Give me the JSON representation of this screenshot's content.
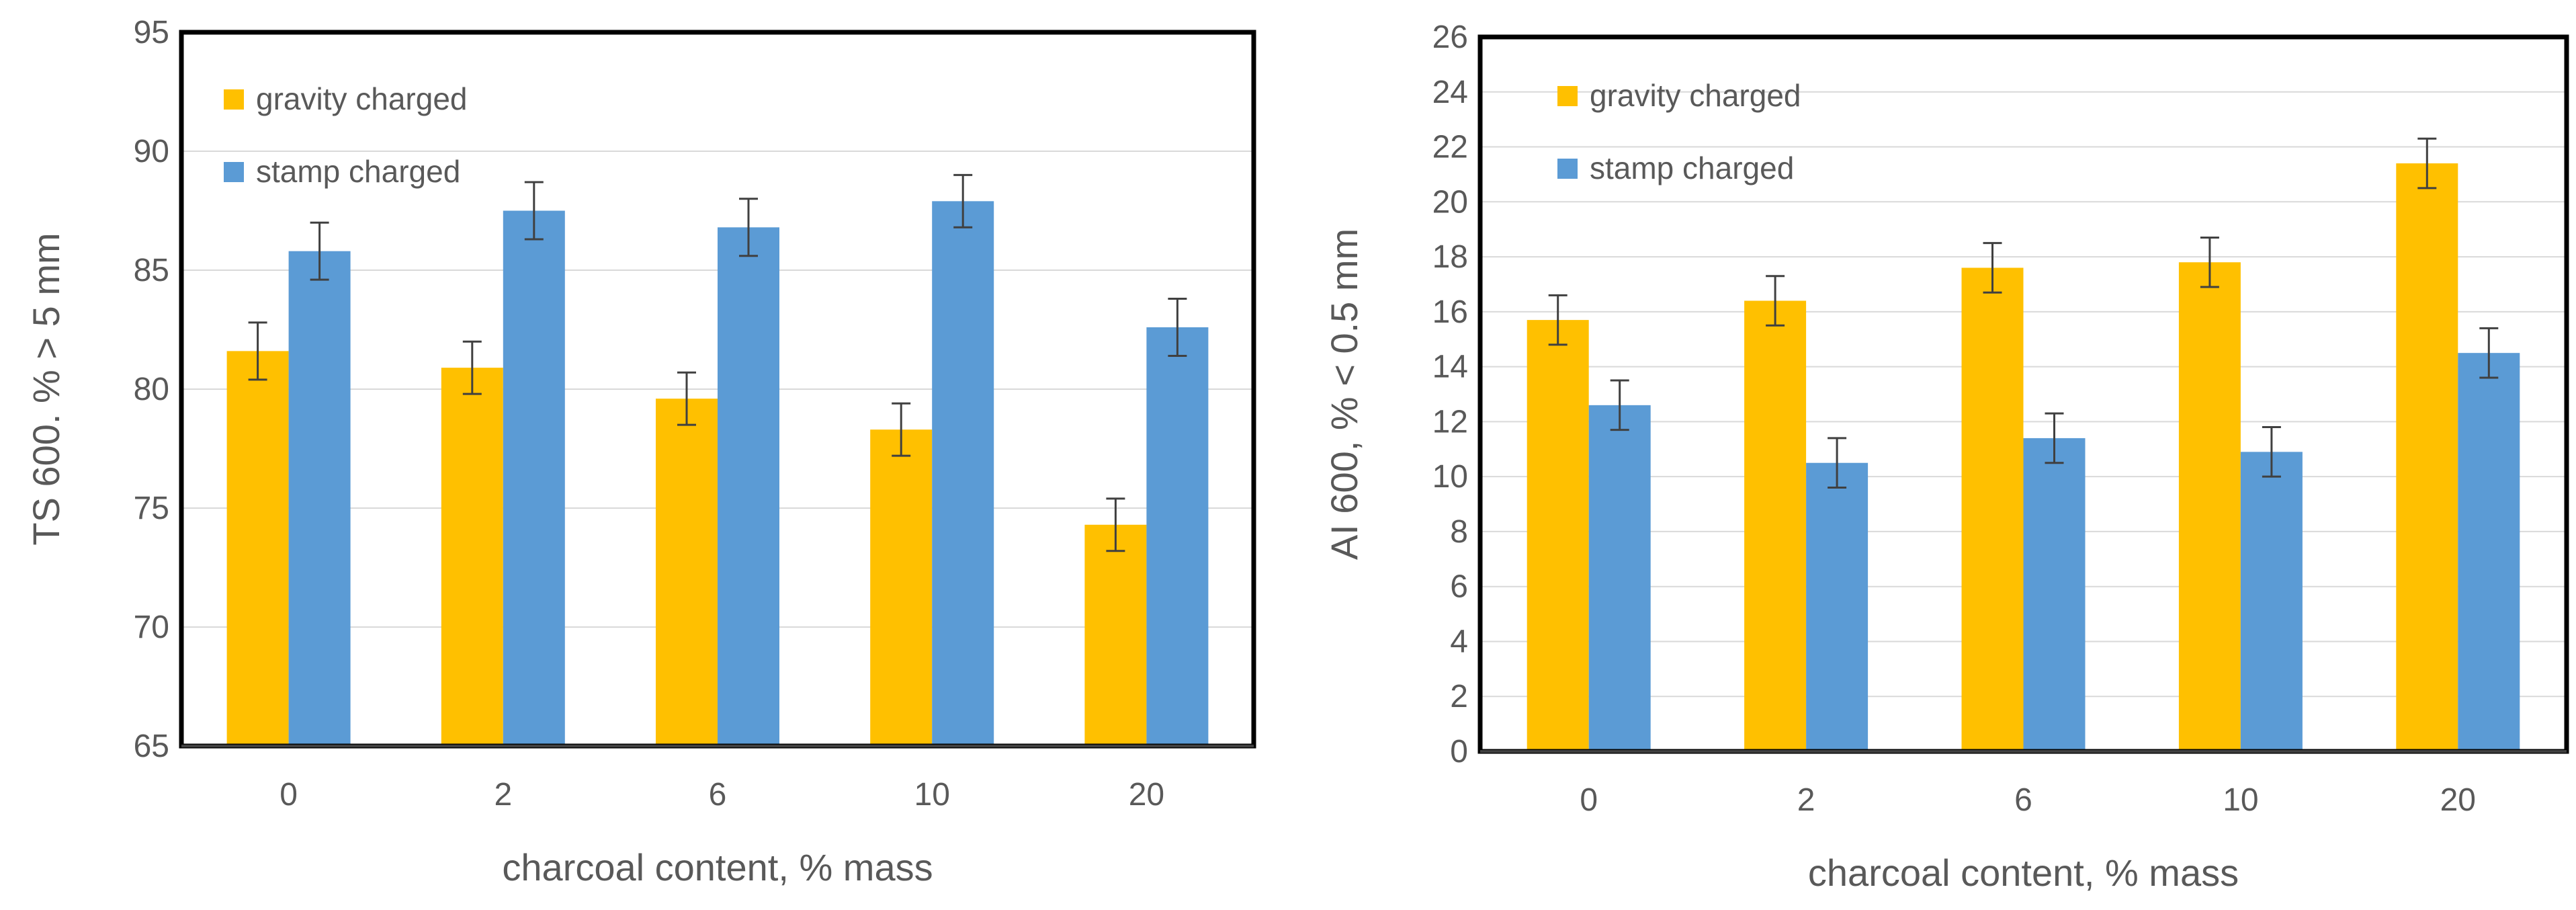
{
  "chart_data": [
    {
      "type": "bar",
      "title": "",
      "xlabel": "charcoal content, % mass",
      "ylabel": "TS 600. % > 5 mm",
      "categories": [
        "0",
        "2",
        "6",
        "10",
        "20"
      ],
      "ylim": [
        65,
        95
      ],
      "yticks": [
        65,
        70,
        75,
        80,
        85,
        90,
        95
      ],
      "grid": true,
      "legend_position": "top-left",
      "series": [
        {
          "name": "gravity charged",
          "color": "#FFC000",
          "values": [
            81.6,
            80.9,
            79.6,
            78.3,
            74.3
          ],
          "errors": [
            1.2,
            1.1,
            1.1,
            1.1,
            1.1
          ]
        },
        {
          "name": "stamp charged",
          "color": "#5B9BD5",
          "values": [
            85.8,
            87.5,
            86.8,
            87.9,
            82.6
          ],
          "errors": [
            1.2,
            1.2,
            1.2,
            1.1,
            1.2
          ]
        }
      ]
    },
    {
      "type": "bar",
      "title": "",
      "xlabel": "charcoal content, % mass",
      "ylabel": "AI 600, % < 0.5 mm",
      "categories": [
        "0",
        "2",
        "6",
        "10",
        "20"
      ],
      "ylim": [
        0,
        26
      ],
      "yticks": [
        0,
        2,
        4,
        6,
        8,
        10,
        12,
        14,
        16,
        18,
        20,
        22,
        24,
        26
      ],
      "grid": true,
      "legend_position": "top-left",
      "series": [
        {
          "name": "gravity charged",
          "color": "#FFC000",
          "values": [
            15.7,
            16.4,
            17.6,
            17.8,
            21.4
          ],
          "errors": [
            0.9,
            0.9,
            0.9,
            0.9,
            0.9
          ]
        },
        {
          "name": "stamp charged",
          "color": "#5B9BD5",
          "values": [
            12.6,
            10.5,
            11.4,
            10.9,
            14.5
          ],
          "errors": [
            0.9,
            0.9,
            0.9,
            0.9,
            0.9
          ]
        }
      ]
    }
  ]
}
